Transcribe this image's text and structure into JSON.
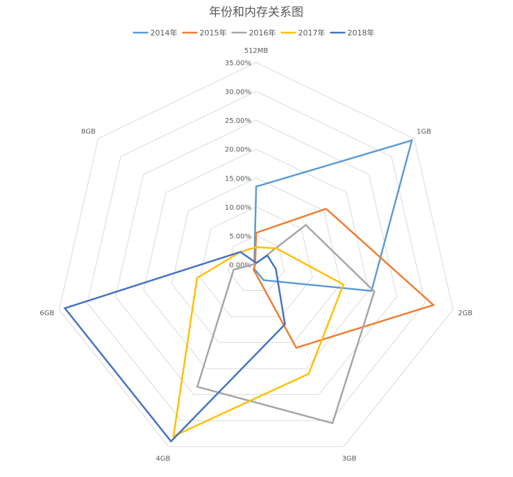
{
  "chart_data": {
    "type": "radar",
    "title": "年份和内存关系图",
    "categories": [
      "512MB",
      "1GB",
      "2GB",
      "3GB",
      "4GB",
      "6GB",
      "8GB"
    ],
    "ticks": [
      "0.00%",
      "5.00%",
      "10.00%",
      "15.00%",
      "20.00%",
      "25.00%",
      "30.00%",
      "35.00%"
    ],
    "rlim": [
      0,
      35
    ],
    "legend_position": "top",
    "series": [
      {
        "name": "2014年",
        "color": "#5B9BD5",
        "values": [
          13.5,
          34.5,
          20.5,
          3.0,
          0.8,
          0.2,
          0.4
        ]
      },
      {
        "name": "2015年",
        "color": "#ED7D31",
        "values": [
          5.5,
          15.5,
          31.5,
          16.0,
          1.0,
          0.2,
          0.2
        ]
      },
      {
        "name": "2016年",
        "color": "#A5A5A5",
        "values": [
          0.2,
          11.0,
          21.0,
          30.5,
          23.5,
          4.0,
          0.2
        ]
      },
      {
        "name": "2017年",
        "color": "#FFC000",
        "values": [
          3.0,
          4.5,
          15.5,
          21.0,
          33.0,
          10.5,
          3.5
        ]
      },
      {
        "name": "2018年",
        "color": "#4472C4",
        "values": [
          0.3,
          2.5,
          3.5,
          11.5,
          34.0,
          34.0,
          3.5
        ]
      }
    ]
  }
}
